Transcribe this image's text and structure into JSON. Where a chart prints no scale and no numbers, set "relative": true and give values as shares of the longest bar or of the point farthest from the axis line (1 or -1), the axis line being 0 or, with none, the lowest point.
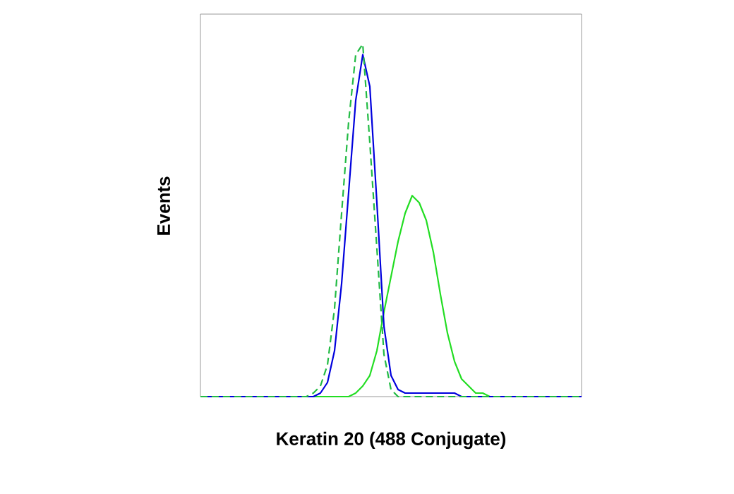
{
  "chart_data": {
    "type": "line",
    "xlabel": "Keratin 20 (488 Conjugate)",
    "ylabel": "Events",
    "relative": true,
    "marker": "none",
    "categories": [
      null,
      null,
      null,
      null,
      null,
      null,
      null,
      null,
      null,
      null,
      null,
      null,
      null,
      null,
      null,
      null,
      null,
      null,
      null,
      null,
      null,
      null,
      null,
      null,
      null,
      null,
      null,
      null,
      null,
      null,
      null,
      null,
      null,
      null,
      null,
      null,
      null,
      null,
      null,
      null,
      null,
      null,
      null,
      null,
      null,
      null,
      null,
      null,
      null,
      null,
      null,
      null,
      null,
      null,
      null
    ],
    "series": [
      {
        "color": "#22dd22",
        "line_style": "solid",
        "values": [
          0,
          0,
          0,
          0,
          0,
          0,
          0,
          0,
          0,
          0,
          0,
          0,
          0,
          0,
          0,
          0,
          0,
          0,
          0,
          0,
          0,
          0,
          0.01,
          0.03,
          0.06,
          0.13,
          0.24,
          0.34,
          0.44,
          0.52,
          0.57,
          0.55,
          0.5,
          0.41,
          0.29,
          0.18,
          0.1,
          0.05,
          0.03,
          0.01,
          0.01,
          0,
          0,
          0,
          0,
          0,
          0,
          0,
          0,
          0,
          0,
          0,
          0,
          0,
          0
        ]
      },
      {
        "color": "#0000dd",
        "line_style": "solid",
        "values": [
          0,
          0,
          0,
          0,
          0,
          0,
          0,
          0,
          0,
          0,
          0,
          0,
          0,
          0,
          0,
          0,
          0,
          0.01,
          0.04,
          0.13,
          0.32,
          0.58,
          0.84,
          0.97,
          0.88,
          0.55,
          0.2,
          0.06,
          0.02,
          0.01,
          0.01,
          0.01,
          0.01,
          0.01,
          0.01,
          0.01,
          0.01,
          0,
          0,
          0,
          0,
          0,
          0,
          0,
          0,
          0,
          0,
          0,
          0,
          0,
          0,
          0,
          0,
          0,
          0
        ]
      },
      {
        "color": "#22bb44",
        "line_style": "dashed",
        "values": [
          0,
          0,
          0,
          0,
          0,
          0,
          0,
          0,
          0,
          0,
          0,
          0,
          0,
          0,
          0,
          0,
          0.01,
          0.03,
          0.09,
          0.25,
          0.52,
          0.78,
          0.97,
          1.0,
          0.72,
          0.42,
          0.12,
          0.02,
          0,
          0,
          0,
          0,
          0,
          0,
          0,
          0,
          0,
          0,
          0,
          0,
          0,
          0,
          0,
          0,
          0,
          0,
          0,
          0,
          0,
          0,
          0,
          0,
          0,
          0,
          0
        ]
      }
    ]
  }
}
